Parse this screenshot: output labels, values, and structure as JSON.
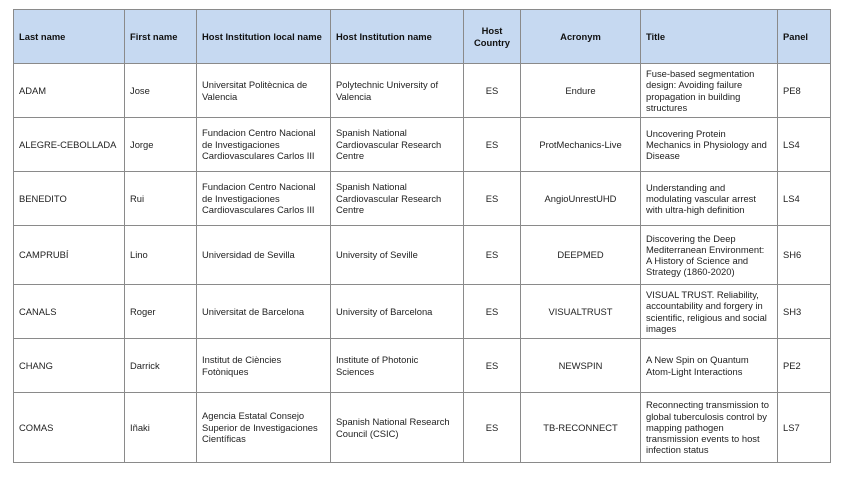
{
  "table": {
    "headers": [
      "Last name",
      "First name",
      "Host Institution local name",
      "Host Institution name",
      "Host Country",
      "Acronym",
      "Title",
      "Panel"
    ],
    "rows": [
      [
        "ADAM",
        "Jose",
        "Universitat Politècnica de Valencia",
        "Polytechnic University of Valencia",
        "ES",
        "Endure",
        "Fuse-based segmentation design: Avoiding failure propagation in building structures",
        "PE8"
      ],
      [
        "ALEGRE-CEBOLLADA",
        "Jorge",
        "Fundacion Centro Nacional de Investigaciones Cardiovasculares Carlos III",
        "Spanish National Cardiovascular Research Centre",
        "ES",
        "ProtMechanics-Live",
        "Uncovering Protein Mechanics in Physiology and Disease",
        "LS4"
      ],
      [
        "BENEDITO",
        "Rui",
        "Fundacion Centro Nacional de Investigaciones Cardiovasculares Carlos III",
        "Spanish National Cardiovascular Research Centre",
        "ES",
        "AngioUnrestUHD",
        "Understanding and modulating vascular arrest with ultra-high definition",
        "LS4"
      ],
      [
        "CAMPRUBÍ",
        "Lino",
        "Universidad de Sevilla",
        "University of Seville",
        "ES",
        "DEEPMED",
        "Discovering the Deep Mediterranean Environment: A History of Science and Strategy (1860-2020)",
        "SH6"
      ],
      [
        "CANALS",
        "Roger",
        "Universitat de Barcelona",
        "University of Barcelona",
        "ES",
        "VISUALTRUST",
        "VISUAL TRUST. Reliability, accountability and forgery in scientific, religious and social images",
        "SH3"
      ],
      [
        "CHANG",
        "Darrick",
        "Institut de Ciències Fotòniques",
        "Institute of Photonic Sciences",
        "ES",
        "NEWSPIN",
        "A New Spin on Quantum Atom-Light Interactions",
        "PE2"
      ],
      [
        "COMAS",
        "Iñaki",
        "Agencia Estatal Consejo Superior de Investigaciones Científicas",
        "Spanish National Research Council (CSIC)",
        "ES",
        "TB-RECONNECT",
        "Reconnecting transmission to global tuberculosis control by mapping pathogen transmission events to host infection status",
        "LS7"
      ]
    ]
  },
  "colors": {
    "header_bg": "#c6d9f1",
    "border": "#8a8a8a"
  }
}
